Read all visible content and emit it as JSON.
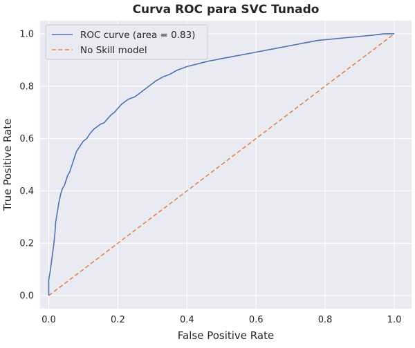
{
  "chart_data": {
    "type": "line",
    "title": "Curva ROC para SVC Tunado",
    "xlabel": "False Positive Rate",
    "ylabel": "True Positive Rate",
    "xlim": [
      -0.025,
      1.05
    ],
    "ylim": [
      -0.05,
      1.05
    ],
    "xticks": [
      "0.0",
      "0.2",
      "0.4",
      "0.6",
      "0.8",
      "1.0"
    ],
    "yticks": [
      "0.0",
      "0.2",
      "0.4",
      "0.6",
      "0.8",
      "1.0"
    ],
    "grid": true,
    "legend_position": "top-left",
    "plot_background": "#eaeaf2",
    "series": [
      {
        "name": "ROC curve (area = 0.83)",
        "color": "#4c72b0",
        "style": "solid",
        "x": [
          0.0,
          0.0,
          0.005,
          0.008,
          0.012,
          0.015,
          0.018,
          0.02,
          0.025,
          0.03,
          0.035,
          0.04,
          0.045,
          0.05,
          0.055,
          0.06,
          0.065,
          0.07,
          0.075,
          0.08,
          0.085,
          0.09,
          0.095,
          0.1,
          0.11,
          0.12,
          0.13,
          0.14,
          0.15,
          0.16,
          0.17,
          0.18,
          0.19,
          0.2,
          0.21,
          0.22,
          0.23,
          0.24,
          0.25,
          0.27,
          0.29,
          0.31,
          0.33,
          0.35,
          0.37,
          0.4,
          0.43,
          0.46,
          0.5,
          0.54,
          0.58,
          0.62,
          0.66,
          0.7,
          0.74,
          0.78,
          0.82,
          0.86,
          0.9,
          0.94,
          0.97,
          1.0
        ],
        "y": [
          0.0,
          0.06,
          0.1,
          0.13,
          0.17,
          0.2,
          0.24,
          0.28,
          0.32,
          0.36,
          0.39,
          0.41,
          0.42,
          0.44,
          0.46,
          0.47,
          0.49,
          0.51,
          0.53,
          0.55,
          0.56,
          0.57,
          0.58,
          0.59,
          0.6,
          0.62,
          0.635,
          0.645,
          0.655,
          0.66,
          0.675,
          0.69,
          0.7,
          0.715,
          0.73,
          0.74,
          0.75,
          0.755,
          0.76,
          0.78,
          0.8,
          0.82,
          0.835,
          0.845,
          0.86,
          0.875,
          0.885,
          0.895,
          0.905,
          0.915,
          0.925,
          0.935,
          0.945,
          0.955,
          0.965,
          0.975,
          0.98,
          0.985,
          0.99,
          0.995,
          1.0,
          1.0
        ]
      },
      {
        "name": "No Skill model",
        "color": "#dd8452",
        "style": "dashed",
        "x": [
          0.0,
          1.0
        ],
        "y": [
          0.0,
          1.0
        ]
      }
    ]
  }
}
